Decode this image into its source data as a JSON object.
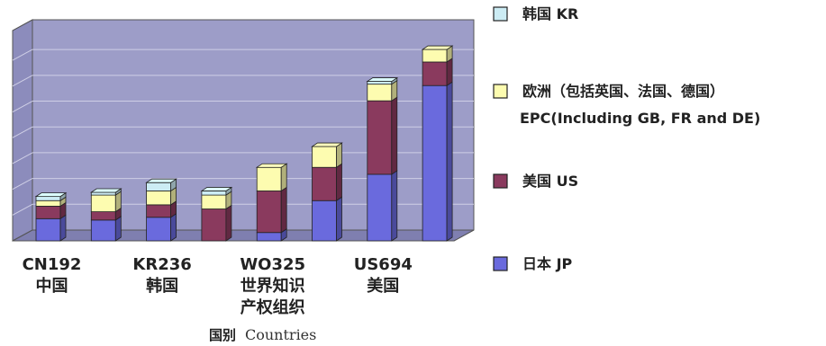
{
  "chart_data": {
    "type": "bar",
    "stacked": true,
    "style": "3d",
    "title": "",
    "ylabel": "",
    "xlabel_cn": "国别",
    "xlabel_en": "Countries",
    "ylim": [
      0,
      700
    ],
    "grid": true,
    "legend_position": "right",
    "categories": [
      [
        "CN192",
        "中国"
      ],
      [
        "",
        ""
      ],
      [
        "KR236",
        "韩国"
      ],
      [
        "",
        ""
      ],
      [
        "WO325",
        "世界知识",
        "产权组织"
      ],
      [
        "",
        ""
      ],
      [
        "US694",
        "美国"
      ],
      [
        "",
        ""
      ]
    ],
    "series": [
      {
        "name": "日本 JP",
        "color": "#6a6add",
        "values": [
          80,
          75,
          85,
          0,
          30,
          145,
          240,
          560
        ]
      },
      {
        "name": "美国 US",
        "color": "#8a3a5e",
        "values": [
          45,
          30,
          45,
          115,
          150,
          120,
          265,
          85
        ]
      },
      {
        "name": "欧洲（包括英国、法国、德国） EPC(Including GB, FR and DE)",
        "color": "#fdfcb0",
        "values": [
          20,
          60,
          50,
          50,
          85,
          75,
          60,
          45
        ]
      },
      {
        "name": "韩国 KR",
        "color": "#ccecf4",
        "values": [
          15,
          10,
          30,
          15,
          0,
          0,
          10,
          0
        ]
      }
    ],
    "legend_order": [
      3,
      2,
      1,
      0
    ],
    "legend_lines": [
      [
        "韩国 KR"
      ],
      [
        "欧洲（包括英国、法国、德国）",
        "EPC(Including GB, FR and DE)"
      ],
      [
        "美国 US"
      ],
      [
        "日本 JP"
      ]
    ],
    "colors": {
      "plot_bg": "#9d9dc8",
      "floor": "#7f7fb0",
      "side_wall": "#8c8cbc",
      "grid": "#cfcfe6"
    }
  }
}
